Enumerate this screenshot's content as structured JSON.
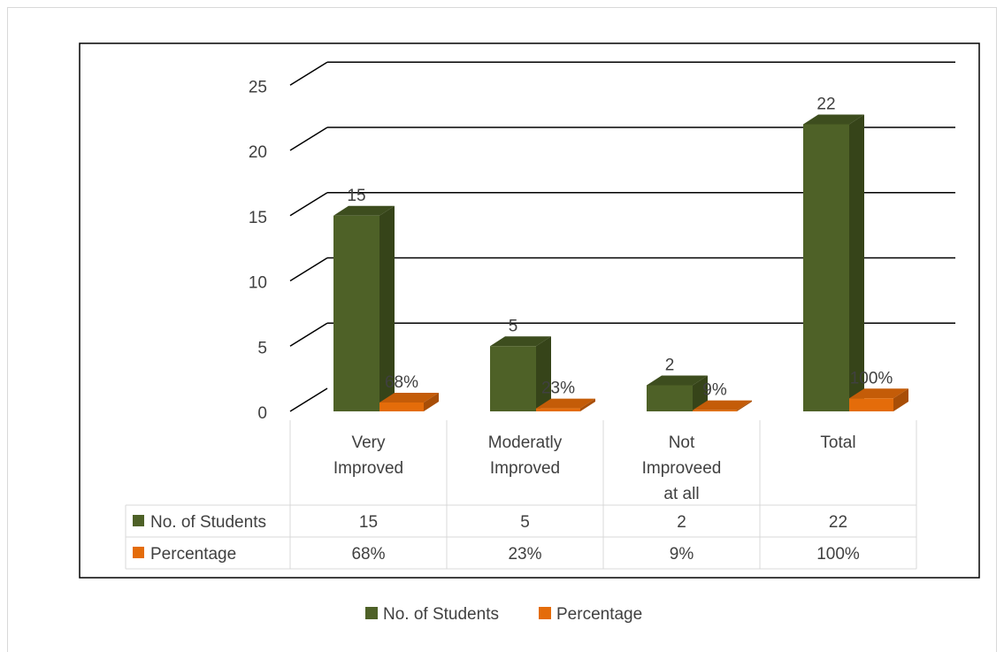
{
  "chart_data": {
    "type": "bar",
    "categories": [
      [
        "Very",
        "Improved"
      ],
      [
        "Moderatly",
        "Improved"
      ],
      [
        "Not",
        "Improveed",
        "at all"
      ],
      [
        "Total"
      ]
    ],
    "series": [
      {
        "name": "No. of Students",
        "values": [
          15,
          5,
          2,
          22
        ],
        "labels": [
          "15",
          "5",
          "2",
          "22"
        ],
        "color": "#4e6127",
        "side_color": "#364419",
        "top_color": "#3d4d1e"
      },
      {
        "name": "Percentage",
        "values": [
          0.68,
          0.23,
          0.09,
          1.0
        ],
        "labels": [
          "68%",
          "23%",
          "9%",
          "100%"
        ],
        "color": "#e46c0a",
        "side_color": "#a84e07",
        "top_color": "#c45c08"
      }
    ],
    "data_table": {
      "rows": [
        {
          "name": "No. of Students",
          "cells": [
            "15",
            "5",
            "2",
            "22"
          ]
        },
        {
          "name": "Percentage",
          "cells": [
            "68%",
            "23%",
            "9%",
            "100%"
          ]
        }
      ]
    },
    "y_ticks": [
      "0",
      "5",
      "10",
      "15",
      "20",
      "25"
    ],
    "ylim": [
      0,
      25
    ],
    "grid": true,
    "legend_position": "bottom",
    "title": "",
    "xlabel": "",
    "ylabel": ""
  }
}
